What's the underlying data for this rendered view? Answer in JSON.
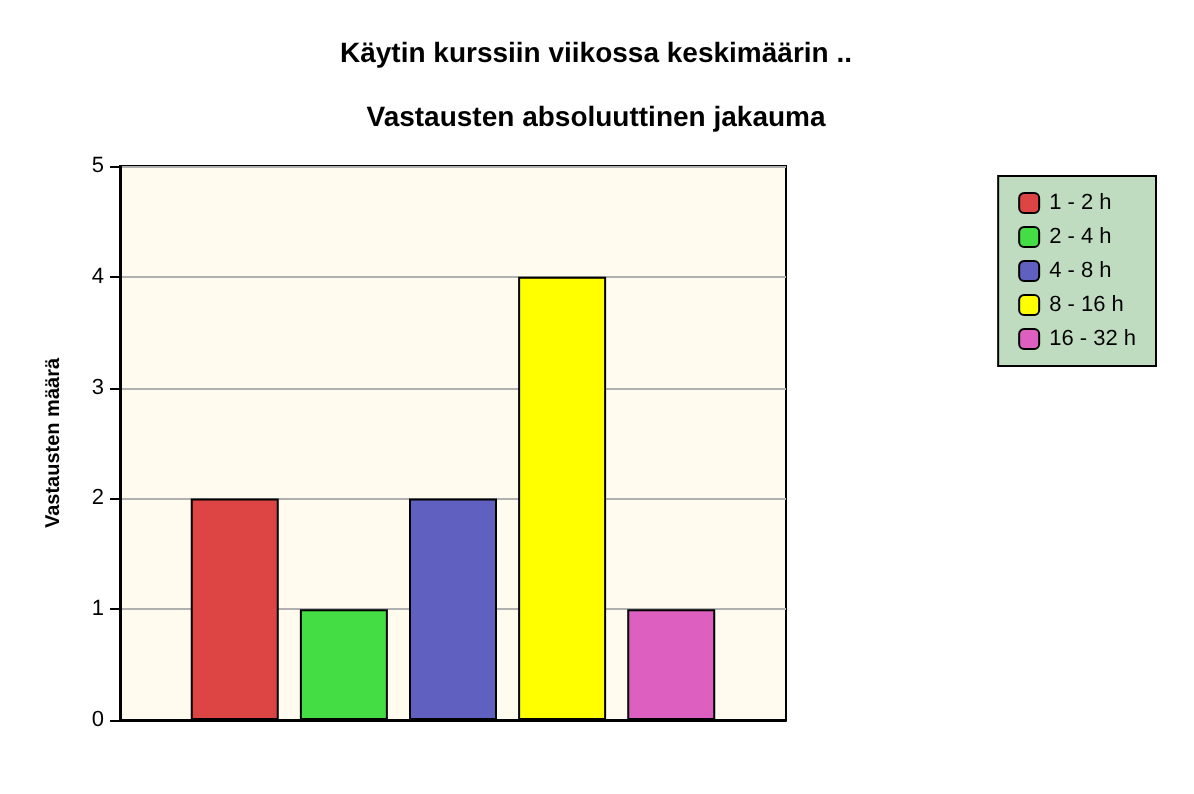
{
  "chart_data": {
    "type": "bar",
    "title": "Käytin kurssiin viikossa keskimäärin ..",
    "subtitle": "Vastausten absoluuttinen jakauma",
    "ylabel": "Vastausten määrä",
    "categories": [
      null
    ],
    "series": [
      {
        "name": "1 - 2 h",
        "color": "#dd4444",
        "values": [
          2
        ]
      },
      {
        "name": "2 - 4 h",
        "color": "#44dd44",
        "values": [
          1
        ]
      },
      {
        "name": "4 - 8 h",
        "color": "#6060c0",
        "values": [
          2
        ]
      },
      {
        "name": "8 - 16 h",
        "color": "#ffff00",
        "values": [
          4
        ]
      },
      {
        "name": "16 - 32 h",
        "color": "#dd60c0",
        "values": [
          1
        ]
      }
    ],
    "ylim": [
      0,
      5
    ],
    "yticks": [
      0,
      1,
      2,
      3,
      4,
      5
    ],
    "grid": "y",
    "legend": "top right"
  }
}
